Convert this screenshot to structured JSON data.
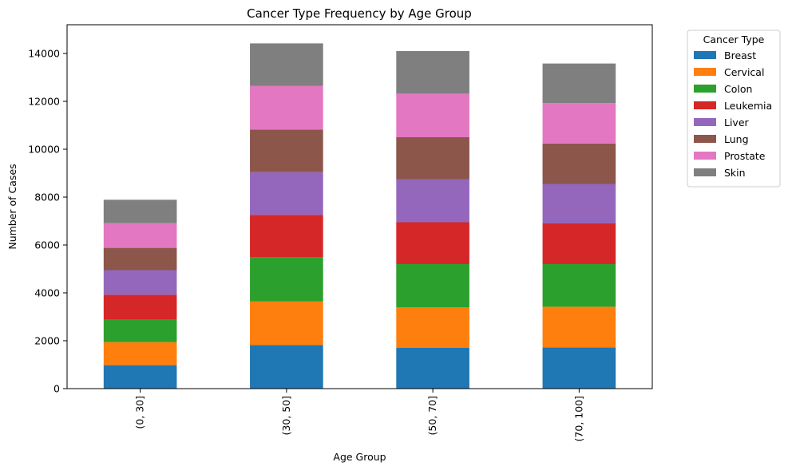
{
  "chart_data": {
    "type": "bar",
    "stacked": true,
    "title": "Cancer Type Frequency by Age Group",
    "xlabel": "Age Group",
    "ylabel": "Number of Cases",
    "ylim": [
      0,
      15200
    ],
    "yticks": [
      0,
      2000,
      4000,
      6000,
      8000,
      10000,
      12000,
      14000
    ],
    "categories": [
      "(0, 30]",
      "(30, 50]",
      "(50, 70]",
      "(70, 100]"
    ],
    "legend_title": "Cancer Type",
    "legend_position": "outside-top-right",
    "grid": false,
    "series": [
      {
        "name": "Breast",
        "color": "#1f77b4",
        "values": [
          980,
          1820,
          1700,
          1720
        ]
      },
      {
        "name": "Cervical",
        "color": "#ff7f0e",
        "values": [
          960,
          1820,
          1700,
          1700
        ]
      },
      {
        "name": "Colon",
        "color": "#2ca02c",
        "values": [
          960,
          1850,
          1800,
          1780
        ]
      },
      {
        "name": "Leukemia",
        "color": "#d62728",
        "values": [
          1020,
          1770,
          1750,
          1700
        ]
      },
      {
        "name": "Liver",
        "color": "#9467bd",
        "values": [
          1030,
          1780,
          1800,
          1650
        ]
      },
      {
        "name": "Lung",
        "color": "#8c564b",
        "values": [
          930,
          1780,
          1750,
          1690
        ]
      },
      {
        "name": "Prostate",
        "color": "#e377c2",
        "values": [
          1030,
          1820,
          1820,
          1690
        ]
      },
      {
        "name": "Skin",
        "color": "#7f7f7f",
        "values": [
          980,
          1780,
          1780,
          1650
        ]
      }
    ]
  }
}
